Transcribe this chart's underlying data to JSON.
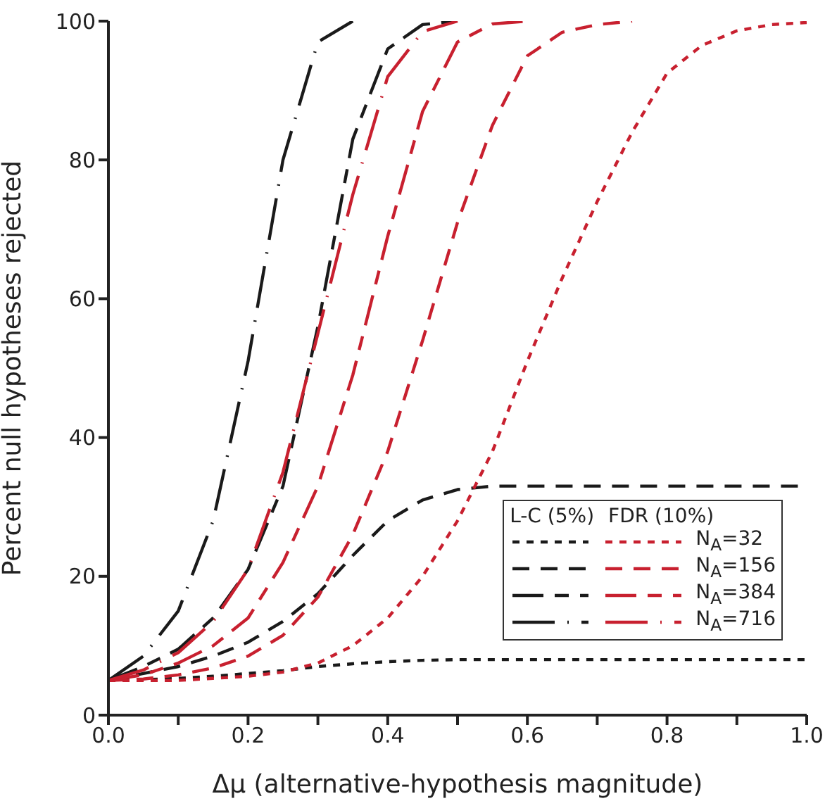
{
  "chart_data": {
    "type": "line",
    "xlabel": "Δμ  (alternative-hypothesis magnitude)",
    "ylabel": "Percent null hypotheses rejected",
    "x": [
      0,
      0.05,
      0.1,
      0.15,
      0.2,
      0.25,
      0.3,
      0.35,
      0.4,
      0.45,
      0.5,
      0.55,
      0.6,
      0.65,
      0.7,
      0.75,
      0.8,
      0.85,
      0.9,
      0.95,
      1.0
    ],
    "xlim": [
      0,
      1
    ],
    "ylim": [
      0,
      100
    ],
    "xticks": [
      {
        "value": 0,
        "label": "0.0"
      },
      {
        "value": 0.1,
        "label": null
      },
      0.2,
      {
        "value": 0.3,
        "label": null
      },
      0.4,
      {
        "value": 0.5,
        "label": null
      },
      0.6,
      {
        "value": 0.7,
        "label": null
      },
      0.8,
      {
        "value": 0.9,
        "label": null
      },
      {
        "value": 1,
        "label": "1.0"
      }
    ],
    "yticks": [
      0,
      20,
      40,
      60,
      80,
      100
    ],
    "grid": false,
    "legend": "right",
    "marker": "none",
    "annotations": [
      "L-C (5%)",
      "FDR (10%)"
    ],
    "series": [
      {
        "color": "#1a1a1a",
        "line_style": "dotted",
        "values": [
          5,
          5.1,
          5.3,
          5.6,
          6,
          6.4,
          7,
          7.4,
          7.7,
          7.9,
          8,
          8,
          8,
          8,
          8,
          8,
          8,
          8,
          8,
          8,
          8
        ]
      },
      {
        "color": "#1a1a1a",
        "line_style": "dashed",
        "values": [
          5,
          6,
          7,
          8.5,
          10.5,
          13.5,
          17.5,
          23,
          28,
          31,
          32.5,
          33,
          33,
          33,
          33,
          33,
          33,
          33,
          33,
          33,
          33
        ]
      },
      {
        "color": "#1a1a1a",
        "line_style": "dashed",
        "values": [
          5,
          7,
          9.5,
          14,
          21,
          33,
          56,
          83,
          96,
          99.5,
          100,
          null,
          null,
          null,
          null,
          null,
          null,
          null,
          null,
          null,
          null
        ]
      },
      {
        "color": "#1a1a1a",
        "line_style": "dashed",
        "values": [
          5,
          8.5,
          15,
          28,
          51,
          80,
          97,
          100,
          null,
          null,
          null,
          null,
          null,
          null,
          null,
          null,
          null,
          null,
          null,
          null,
          null
        ]
      },
      {
        "name": "N$_{A}$=32",
        "color": "#c8202f",
        "line_style": "dotted",
        "values": [
          5,
          5,
          5,
          5.3,
          5.6,
          6.2,
          7.5,
          10,
          14,
          20,
          28,
          38,
          51,
          63,
          74,
          84,
          92.5,
          96.5,
          98.6,
          99.5,
          99.8
        ]
      },
      {
        "name": "N$_{A}$=156",
        "color": "#c8202f",
        "line_style": "dashed",
        "values": [
          5,
          5.2,
          5.8,
          6.8,
          8.5,
          11.5,
          17,
          26,
          38,
          54,
          71,
          85,
          95,
          98.4,
          99.5,
          100,
          null,
          null,
          null,
          null,
          null
        ]
      },
      {
        "name": "N$_{A}$=384",
        "color": "#c8202f",
        "line_style": "dashed",
        "values": [
          5,
          5.8,
          7.5,
          10,
          14,
          22,
          33,
          49,
          69,
          87,
          97,
          99.6,
          100,
          null,
          null,
          null,
          null,
          null,
          null,
          null,
          null
        ]
      },
      {
        "name": "N$_{A}$=716",
        "color": "#c8202f",
        "line_style": "dashed",
        "values": [
          5,
          6.5,
          9,
          13.5,
          21,
          35,
          55,
          75,
          92,
          98.5,
          100,
          null,
          null,
          null,
          null,
          null,
          null,
          null,
          null,
          null,
          null
        ]
      }
    ]
  }
}
